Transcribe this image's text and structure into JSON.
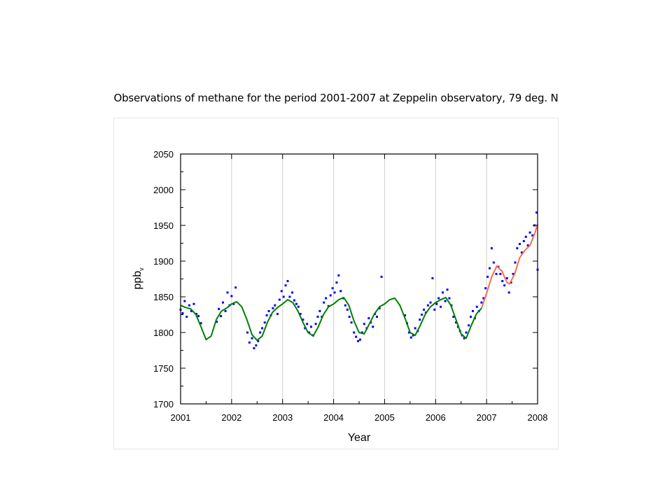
{
  "slide": {
    "title": "Observations of methane for the period 2001-2007 at Zeppelin observatory, 79 deg. N"
  },
  "chart_data": {
    "type": "scatter",
    "xlabel": "Year",
    "ylabel": "ppb",
    "ylabel_subscript": "v",
    "xlim": [
      2001,
      2008
    ],
    "ylim": [
      1700,
      2050
    ],
    "x_ticks": [
      "2001",
      "2002",
      "2003",
      "2004",
      "2005",
      "2006",
      "2007",
      "2008"
    ],
    "y_ticks": [
      "1700",
      "1750",
      "1800",
      "1850",
      "1900",
      "1950",
      "2000",
      "2050"
    ],
    "grid": "vertical lines at each year",
    "legend": "none",
    "colors": {
      "observations": "#0000ff",
      "seasonal_fit": "#008000",
      "recent_fit": "#ff6a4d"
    },
    "series": [
      {
        "kind": "scatter",
        "points": [
          [
            2001.0,
            1832
          ],
          [
            2001.04,
            1827
          ],
          [
            2001.08,
            1844
          ],
          [
            2001.12,
            1822
          ],
          [
            2001.17,
            1838
          ],
          [
            2001.21,
            1830
          ],
          [
            2001.26,
            1840
          ],
          [
            2001.31,
            1826
          ],
          [
            2001.35,
            1823
          ],
          [
            2001.4,
            1813
          ],
          [
            2001.71,
            1815
          ],
          [
            2001.75,
            1833
          ],
          [
            2001.79,
            1823
          ],
          [
            2001.83,
            1842
          ],
          [
            2001.88,
            1830
          ],
          [
            2001.92,
            1856
          ],
          [
            2001.96,
            1838
          ],
          [
            2002.0,
            1851
          ],
          [
            2002.04,
            1840
          ],
          [
            2002.08,
            1863
          ],
          [
            2002.31,
            1800
          ],
          [
            2002.35,
            1786
          ],
          [
            2002.4,
            1792
          ],
          [
            2002.44,
            1778
          ],
          [
            2002.48,
            1782
          ],
          [
            2002.52,
            1788
          ],
          [
            2002.56,
            1800
          ],
          [
            2002.6,
            1806
          ],
          [
            2002.65,
            1814
          ],
          [
            2002.69,
            1824
          ],
          [
            2002.73,
            1830
          ],
          [
            2002.77,
            1824
          ],
          [
            2002.81,
            1834
          ],
          [
            2002.85,
            1838
          ],
          [
            2002.9,
            1826
          ],
          [
            2002.94,
            1846
          ],
          [
            2002.98,
            1858
          ],
          [
            2003.02,
            1850
          ],
          [
            2003.06,
            1866
          ],
          [
            2003.1,
            1872
          ],
          [
            2003.14,
            1850
          ],
          [
            2003.19,
            1856
          ],
          [
            2003.23,
            1845
          ],
          [
            2003.27,
            1840
          ],
          [
            2003.31,
            1836
          ],
          [
            2003.35,
            1826
          ],
          [
            2003.4,
            1818
          ],
          [
            2003.44,
            1806
          ],
          [
            2003.48,
            1812
          ],
          [
            2003.52,
            1800
          ],
          [
            2003.56,
            1808
          ],
          [
            2003.6,
            1796
          ],
          [
            2003.65,
            1812
          ],
          [
            2003.69,
            1822
          ],
          [
            2003.73,
            1830
          ],
          [
            2003.77,
            1822
          ],
          [
            2003.81,
            1842
          ],
          [
            2003.85,
            1848
          ],
          [
            2003.9,
            1837
          ],
          [
            2003.94,
            1852
          ],
          [
            2003.98,
            1862
          ],
          [
            2004.02,
            1856
          ],
          [
            2004.06,
            1870
          ],
          [
            2004.1,
            1880
          ],
          [
            2004.14,
            1858
          ],
          [
            2004.19,
            1848
          ],
          [
            2004.23,
            1838
          ],
          [
            2004.27,
            1832
          ],
          [
            2004.31,
            1822
          ],
          [
            2004.35,
            1814
          ],
          [
            2004.4,
            1800
          ],
          [
            2004.44,
            1794
          ],
          [
            2004.48,
            1788
          ],
          [
            2004.52,
            1790
          ],
          [
            2004.56,
            1800
          ],
          [
            2004.6,
            1812
          ],
          [
            2004.65,
            1806
          ],
          [
            2004.69,
            1820
          ],
          [
            2004.73,
            1814
          ],
          [
            2004.77,
            1808
          ],
          [
            2004.81,
            1826
          ],
          [
            2004.85,
            1822
          ],
          [
            2004.9,
            1834
          ],
          [
            2004.94,
            1878
          ],
          [
            2005.4,
            1824
          ],
          [
            2005.44,
            1813
          ],
          [
            2005.48,
            1800
          ],
          [
            2005.52,
            1793
          ],
          [
            2005.56,
            1796
          ],
          [
            2005.6,
            1806
          ],
          [
            2005.65,
            1802
          ],
          [
            2005.69,
            1818
          ],
          [
            2005.73,
            1825
          ],
          [
            2005.77,
            1832
          ],
          [
            2005.81,
            1828
          ],
          [
            2005.85,
            1838
          ],
          [
            2005.9,
            1842
          ],
          [
            2005.94,
            1876
          ],
          [
            2005.98,
            1832
          ],
          [
            2006.02,
            1840
          ],
          [
            2006.06,
            1848
          ],
          [
            2006.1,
            1836
          ],
          [
            2006.14,
            1856
          ],
          [
            2006.19,
            1844
          ],
          [
            2006.23,
            1860
          ],
          [
            2006.27,
            1848
          ],
          [
            2006.31,
            1838
          ],
          [
            2006.35,
            1822
          ],
          [
            2006.4,
            1814
          ],
          [
            2006.44,
            1808
          ],
          [
            2006.48,
            1802
          ],
          [
            2006.52,
            1796
          ],
          [
            2006.56,
            1792
          ],
          [
            2006.6,
            1800
          ],
          [
            2006.65,
            1810
          ],
          [
            2006.69,
            1822
          ],
          [
            2006.73,
            1830
          ],
          [
            2006.77,
            1820
          ],
          [
            2006.81,
            1836
          ],
          [
            2006.85,
            1830
          ],
          [
            2006.9,
            1842
          ],
          [
            2006.94,
            1848
          ],
          [
            2006.98,
            1862
          ],
          [
            2007.02,
            1878
          ],
          [
            2007.06,
            1890
          ],
          [
            2007.1,
            1918
          ],
          [
            2007.14,
            1898
          ],
          [
            2007.19,
            1882
          ],
          [
            2007.23,
            1892
          ],
          [
            2007.27,
            1882
          ],
          [
            2007.31,
            1872
          ],
          [
            2007.35,
            1866
          ],
          [
            2007.4,
            1876
          ],
          [
            2007.44,
            1856
          ],
          [
            2007.48,
            1870
          ],
          [
            2007.52,
            1882
          ],
          [
            2007.56,
            1898
          ],
          [
            2007.6,
            1918
          ],
          [
            2007.65,
            1924
          ],
          [
            2007.69,
            1912
          ],
          [
            2007.73,
            1928
          ],
          [
            2007.77,
            1934
          ],
          [
            2007.81,
            1922
          ],
          [
            2007.85,
            1940
          ],
          [
            2007.9,
            1936
          ],
          [
            2007.94,
            1950
          ],
          [
            2007.98,
            1968
          ],
          [
            2008.0,
            1888
          ]
        ]
      },
      {
        "kind": "line",
        "role": "seasonal_fit",
        "points": [
          [
            2001.0,
            1838
          ],
          [
            2001.1,
            1835
          ],
          [
            2001.2,
            1833
          ],
          [
            2001.3,
            1825
          ],
          [
            2001.4,
            1808
          ],
          [
            2001.5,
            1790
          ],
          [
            2001.6,
            1795
          ],
          [
            2001.7,
            1818
          ],
          [
            2001.8,
            1830
          ],
          [
            2001.9,
            1834
          ],
          [
            2002.0,
            1840
          ],
          [
            2002.1,
            1843
          ],
          [
            2002.2,
            1836
          ],
          [
            2002.3,
            1818
          ],
          [
            2002.4,
            1797
          ],
          [
            2002.5,
            1789
          ],
          [
            2002.6,
            1795
          ],
          [
            2002.7,
            1814
          ],
          [
            2002.8,
            1828
          ],
          [
            2002.9,
            1835
          ],
          [
            2003.0,
            1840
          ],
          [
            2003.1,
            1846
          ],
          [
            2003.2,
            1842
          ],
          [
            2003.3,
            1830
          ],
          [
            2003.4,
            1814
          ],
          [
            2003.5,
            1800
          ],
          [
            2003.6,
            1795
          ],
          [
            2003.7,
            1808
          ],
          [
            2003.8,
            1825
          ],
          [
            2003.9,
            1836
          ],
          [
            2004.0,
            1840
          ],
          [
            2004.1,
            1846
          ],
          [
            2004.2,
            1849
          ],
          [
            2004.3,
            1838
          ],
          [
            2004.4,
            1816
          ],
          [
            2004.5,
            1800
          ],
          [
            2004.6,
            1798
          ],
          [
            2004.7,
            1812
          ],
          [
            2004.8,
            1826
          ],
          [
            2004.9,
            1836
          ],
          [
            2005.0,
            1840
          ],
          [
            2005.1,
            1846
          ],
          [
            2005.2,
            1848
          ],
          [
            2005.3,
            1838
          ],
          [
            2005.4,
            1820
          ],
          [
            2005.5,
            1800
          ],
          [
            2005.6,
            1796
          ],
          [
            2005.7,
            1810
          ],
          [
            2005.8,
            1826
          ],
          [
            2005.9,
            1836
          ],
          [
            2006.0,
            1842
          ],
          [
            2006.1,
            1846
          ],
          [
            2006.2,
            1849
          ],
          [
            2006.3,
            1838
          ],
          [
            2006.4,
            1818
          ],
          [
            2006.5,
            1798
          ],
          [
            2006.6,
            1792
          ],
          [
            2006.7,
            1810
          ],
          [
            2006.8,
            1826
          ],
          [
            2006.9,
            1834
          ]
        ]
      },
      {
        "kind": "line",
        "role": "recent_fit",
        "points": [
          [
            2006.9,
            1834
          ],
          [
            2007.0,
            1855
          ],
          [
            2007.1,
            1878
          ],
          [
            2007.2,
            1893
          ],
          [
            2007.3,
            1886
          ],
          [
            2007.4,
            1870
          ],
          [
            2007.45,
            1868
          ],
          [
            2007.55,
            1882
          ],
          [
            2007.65,
            1905
          ],
          [
            2007.75,
            1915
          ],
          [
            2007.85,
            1922
          ],
          [
            2007.95,
            1940
          ],
          [
            2008.0,
            1952
          ]
        ]
      }
    ]
  }
}
